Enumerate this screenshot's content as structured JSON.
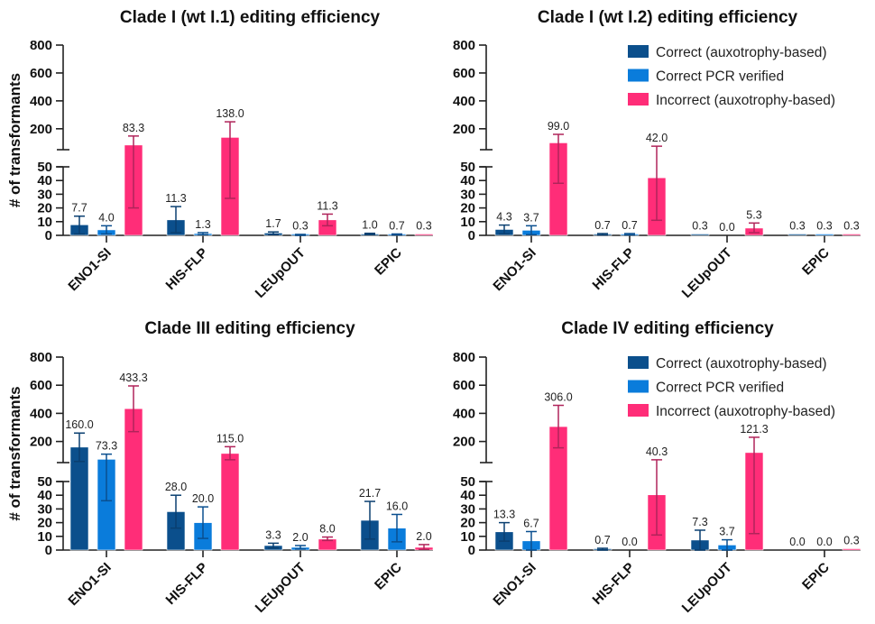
{
  "chart_data": [
    {
      "type": "bar",
      "title": "Clade I (wt I.1) editing efficiency",
      "ylabel": "# of transformants",
      "show_legend": false,
      "categories": [
        "ENO1-SI",
        "HIS-FLP",
        "LEUpOUT",
        "EPIC"
      ],
      "yaxis": {
        "broken": true,
        "lower_range": [
          0,
          50
        ],
        "lower_ticks": [
          0,
          10,
          20,
          30,
          40,
          50
        ],
        "upper_range": [
          50,
          800
        ],
        "upper_ticks": [
          200,
          400,
          600,
          800
        ]
      },
      "series": [
        {
          "name": "Correct (auxotrophy-based)",
          "values": [
            7.7,
            11.3,
            1.7,
            1.0
          ],
          "labels": [
            "7.7",
            "11.3",
            "1.7",
            "1.0"
          ],
          "err_low": [
            1,
            2,
            0.5,
            0.5
          ],
          "err_high": [
            14,
            21,
            2.5,
            1.5
          ]
        },
        {
          "name": "Correct PCR verified",
          "values": [
            4.0,
            1.3,
            0.3,
            0.7
          ],
          "labels": [
            "4.0",
            "1.3",
            "0.3",
            "0.7"
          ],
          "err_low": [
            1,
            0.5,
            0,
            0.3
          ],
          "err_high": [
            7,
            2,
            0.7,
            1
          ]
        },
        {
          "name": "Incorrect (auxotrophy-based)",
          "values": [
            83.3,
            138.0,
            11.3,
            0.3
          ],
          "labels": [
            "83.3",
            "138.0",
            "11.3",
            "0.3"
          ],
          "err_low": [
            20,
            27,
            7,
            0.3
          ],
          "err_high": [
            148,
            250,
            15.5,
            0.3
          ]
        }
      ]
    },
    {
      "type": "bar",
      "title": "Clade I (wt I.2) editing efficiency",
      "ylabel": "",
      "show_legend": true,
      "categories": [
        "ENO1-SI",
        "HIS-FLP",
        "LEUpOUT",
        "EPIC"
      ],
      "yaxis": {
        "broken": true,
        "lower_range": [
          0,
          50
        ],
        "lower_ticks": [
          0,
          10,
          20,
          30,
          40,
          50
        ],
        "upper_range": [
          50,
          800
        ],
        "upper_ticks": [
          200,
          400,
          600,
          800
        ]
      },
      "series": [
        {
          "name": "Correct (auxotrophy-based)",
          "values": [
            4.3,
            0.7,
            0.3,
            0.3
          ],
          "labels": [
            "4.3",
            "0.7",
            "0.3",
            "0.3"
          ],
          "err_low": [
            1,
            0.3,
            0.3,
            0.3
          ],
          "err_high": [
            7.5,
            1.3,
            0.3,
            0.3
          ]
        },
        {
          "name": "Correct PCR verified",
          "values": [
            3.7,
            0.7,
            0.0,
            0.3
          ],
          "labels": [
            "3.7",
            "0.7",
            "0.0",
            "0.3"
          ],
          "err_low": [
            0.5,
            0.3,
            0,
            0.3
          ],
          "err_high": [
            7,
            1.3,
            0,
            0.3
          ]
        },
        {
          "name": "Incorrect (auxotrophy-based)",
          "values": [
            99.0,
            42.0,
            5.3,
            0.3
          ],
          "labels": [
            "99.0",
            "42.0",
            "5.3",
            "0.3"
          ],
          "err_low": [
            38,
            11,
            2,
            0.3
          ],
          "err_high": [
            160,
            75,
            9,
            0.3
          ]
        }
      ]
    },
    {
      "type": "bar",
      "title": "Clade III editing efficiency",
      "ylabel": "# of transformants",
      "show_legend": false,
      "categories": [
        "ENO1-SI",
        "HIS-FLP",
        "LEUpOUT",
        "EPIC"
      ],
      "yaxis": {
        "broken": true,
        "lower_range": [
          0,
          50
        ],
        "lower_ticks": [
          0,
          10,
          20,
          30,
          40,
          50
        ],
        "upper_range": [
          50,
          800
        ],
        "upper_ticks": [
          200,
          400,
          600,
          800
        ]
      },
      "series": [
        {
          "name": "Correct (auxotrophy-based)",
          "values": [
            160.0,
            28.0,
            3.3,
            21.7
          ],
          "labels": [
            "160.0",
            "28.0",
            "3.3",
            "21.7"
          ],
          "err_low": [
            58,
            16,
            1.5,
            8
          ],
          "err_high": [
            260,
            40,
            5,
            35.5
          ]
        },
        {
          "name": "Correct PCR verified",
          "values": [
            73.3,
            20.0,
            2.0,
            16.0
          ],
          "labels": [
            "73.3",
            "20.0",
            "2.0",
            "16.0"
          ],
          "err_low": [
            36,
            8.5,
            0.7,
            6
          ],
          "err_high": [
            110,
            31.5,
            3.3,
            26
          ]
        },
        {
          "name": "Incorrect (auxotrophy-based)",
          "values": [
            433.3,
            115.0,
            8.0,
            2.0
          ],
          "labels": [
            "433.3",
            "115.0",
            "8.0",
            "2.0"
          ],
          "err_low": [
            270,
            70,
            7,
            0.5
          ],
          "err_high": [
            595,
            163,
            9.5,
            4
          ]
        }
      ]
    },
    {
      "type": "bar",
      "title": "Clade IV editing efficiency",
      "ylabel": "",
      "show_legend": true,
      "categories": [
        "ENO1-SI",
        "HIS-FLP",
        "LEUpOUT",
        "EPIC"
      ],
      "yaxis": {
        "broken": true,
        "lower_range": [
          0,
          50
        ],
        "lower_ticks": [
          0,
          10,
          20,
          30,
          40,
          50
        ],
        "upper_range": [
          50,
          800
        ],
        "upper_ticks": [
          200,
          400,
          600,
          800
        ]
      },
      "series": [
        {
          "name": "Correct (auxotrophy-based)",
          "values": [
            13.3,
            0.7,
            7.3,
            0.0
          ],
          "labels": [
            "13.3",
            "0.7",
            "7.3",
            "0.0"
          ],
          "err_low": [
            6.5,
            0,
            0,
            0
          ],
          "err_high": [
            20,
            1.3,
            14.5,
            0
          ]
        },
        {
          "name": "Correct PCR verified",
          "values": [
            6.7,
            0.0,
            3.7,
            0.0
          ],
          "labels": [
            "6.7",
            "0.0",
            "3.7",
            "0.0"
          ],
          "err_low": [
            0,
            0,
            0,
            0
          ],
          "err_high": [
            13.5,
            0,
            7.5,
            0
          ]
        },
        {
          "name": "Incorrect (auxotrophy-based)",
          "values": [
            306.0,
            40.3,
            121.3,
            0.3
          ],
          "labels": [
            "306.0",
            "40.3",
            "121.3",
            "0.3"
          ],
          "err_low": [
            155,
            11,
            12,
            0.3
          ],
          "err_high": [
            457,
            70,
            230,
            0.3
          ]
        }
      ]
    }
  ],
  "legend": {
    "items": [
      "Correct (auxotrophy-based)",
      "Correct PCR verified",
      "Incorrect (auxotrophy-based)"
    ]
  },
  "colors": {
    "correct_auxotrophy": "#0B4F8C",
    "correct_pcr": "#0A7CDB",
    "incorrect": "#FF2D78",
    "err_correct_auxotrophy": "#0A3F70",
    "err_correct_pcr": "#0A4F8F",
    "err_incorrect": "#B0245A"
  }
}
